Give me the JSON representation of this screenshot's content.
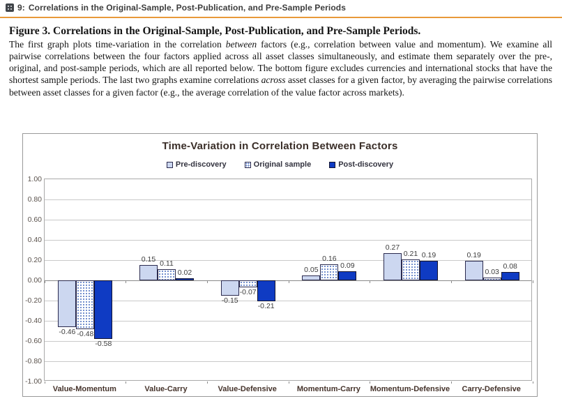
{
  "header": {
    "icon": "figure-icon",
    "number": "9:",
    "title": "Correlations in the Original-Sample, Post-Publication, and Pre-Sample Periods",
    "rule_color": "#E8993A"
  },
  "caption": {
    "title": "Figure 3. Correlations in the Original-Sample, Post-Publication, and Pre-Sample Periods.",
    "segments": [
      {
        "text": "The first graph plots time-variation in the correlation ",
        "italic": false
      },
      {
        "text": "between",
        "italic": true
      },
      {
        "text": " factors (e.g., correlation between value and momentum). We examine all pairwise correlations between the four factors applied across all asset classes simultaneously, and estimate them separately over the pre-, original, and post-sample periods, which are all reported below. The bottom figure excludes currencies and international stocks that have the shortest sample periods. The last two graphs examine correlations ",
        "italic": false
      },
      {
        "text": "across",
        "italic": true
      },
      {
        "text": " asset classes for a given factor, by averaging the pairwise correlations between asset classes for a given factor (e.g., the average correlation of the value factor across markets).",
        "italic": false
      }
    ]
  },
  "chart_data": {
    "type": "bar",
    "title": "Time-Variation in Correlation Between Factors",
    "categories": [
      "Value-Momentum",
      "Value-Carry",
      "Value-Defensive",
      "Momentum-Carry",
      "Momentum-Defensive",
      "Carry-Defensive"
    ],
    "series": [
      {
        "name": "Pre-discovery",
        "values": [
          -0.46,
          0.15,
          -0.15,
          0.05,
          0.27,
          0.19
        ],
        "fill": "#ccd7f0",
        "pattern": "solid",
        "border": "#2a2a4e"
      },
      {
        "name": "Original sample",
        "values": [
          -0.48,
          0.11,
          -0.07,
          0.16,
          0.21,
          0.03
        ],
        "fill": "#ffffff",
        "pattern": "dots",
        "border": "#2a2a4e"
      },
      {
        "name": "Post-discovery",
        "values": [
          -0.58,
          0.02,
          -0.21,
          0.09,
          0.19,
          0.08
        ],
        "fill": "#0f3bc3",
        "pattern": "solid",
        "border": "#14142e"
      }
    ],
    "ylim": [
      -1.0,
      1.0
    ],
    "ytick_step": 0.2,
    "grid": true,
    "legend_position": "top",
    "value_labels": true,
    "xlabel": "",
    "ylabel": ""
  }
}
